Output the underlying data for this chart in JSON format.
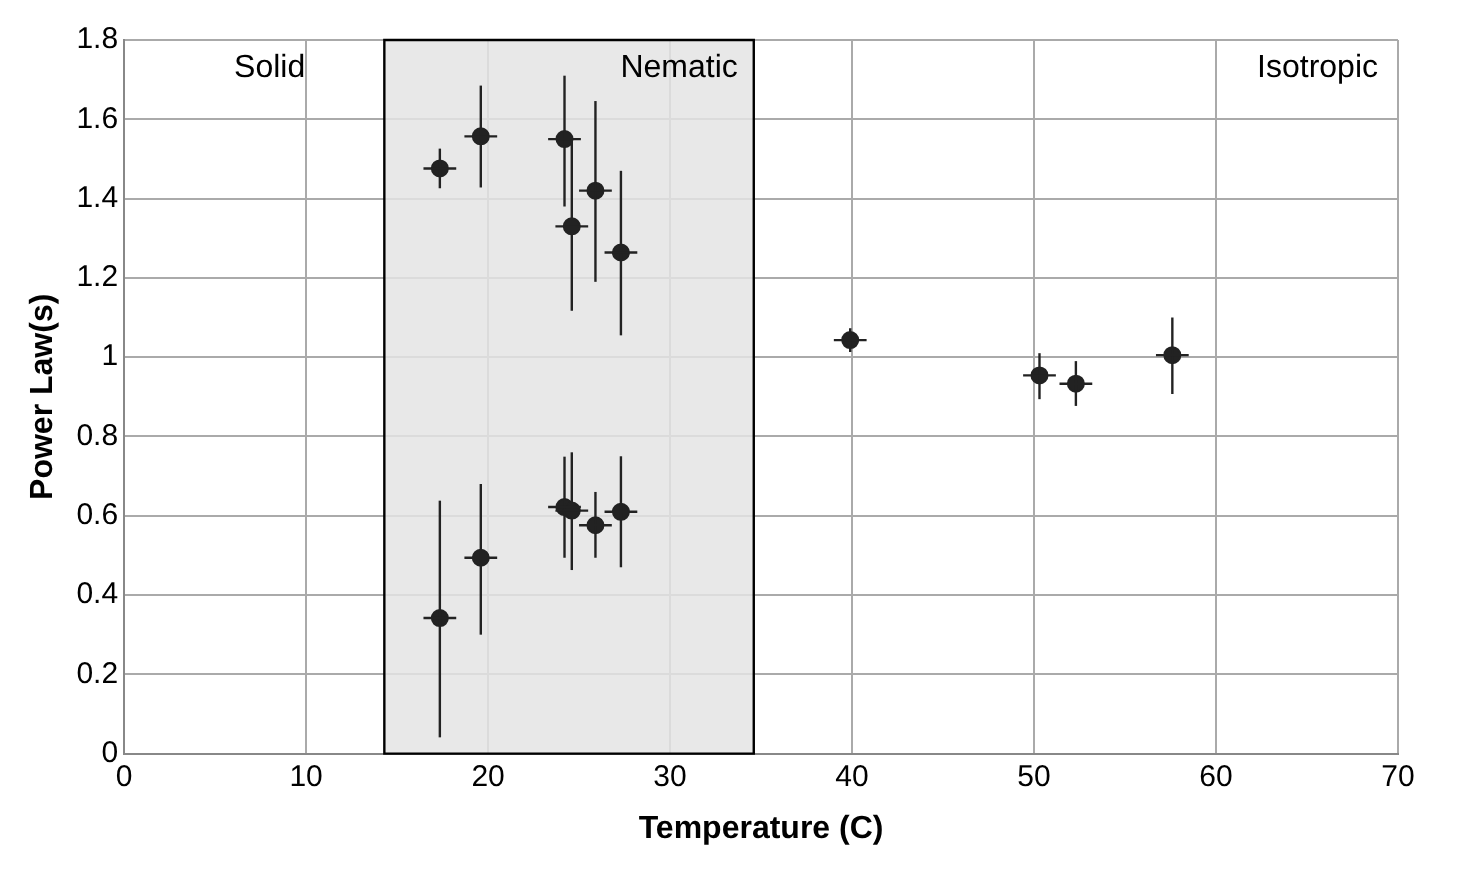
{
  "chart_data": {
    "type": "scatter",
    "xlabel": "Temperature (C)",
    "ylabel": "Power Law(s)",
    "x": [
      17.35,
      19.6,
      24.2,
      24.6,
      25.9,
      27.3,
      17.35,
      19.6,
      24.2,
      24.6,
      25.9,
      27.3,
      39.9,
      50.3,
      52.3,
      57.6
    ],
    "series": [
      {
        "color": "#222222",
        "values": [
          1.476,
          1.557,
          1.55,
          1.33,
          1.42,
          1.264,
          0.342,
          0.494,
          0.622,
          0.613,
          0.576,
          0.61,
          1.043,
          0.954,
          0.933,
          1.005
        ],
        "errors": [
          [
            1.426,
            1.526
          ],
          [
            1.428,
            1.685
          ],
          [
            1.38,
            1.71
          ],
          [
            1.117,
            1.55
          ],
          [
            1.19,
            1.646
          ],
          [
            1.055,
            1.47
          ],
          [
            0.041,
            0.638
          ],
          [
            0.3,
            0.68
          ],
          [
            0.494,
            0.749
          ],
          [
            0.463,
            0.76
          ],
          [
            0.494,
            0.66
          ],
          [
            0.47,
            0.75
          ],
          [
            1.013,
            1.073
          ],
          [
            0.894,
            1.01
          ],
          [
            0.877,
            0.99
          ],
          [
            0.907,
            1.1
          ]
        ],
        "xerrors": [
          0.9,
          0.9,
          0.9,
          0.9,
          0.9,
          0.9,
          0.9,
          0.9,
          0.9,
          0.9,
          0.9,
          0.9,
          0.9,
          0.9,
          0.9,
          0.9
        ]
      }
    ],
    "xlim": [
      0,
      70
    ],
    "xticks": [
      0,
      10,
      20,
      30,
      40,
      50,
      60,
      70
    ],
    "ylim": [
      0,
      1.8
    ],
    "yticks": [
      0,
      0.2,
      0.4,
      0.6,
      0.8,
      1,
      1.2,
      1.4,
      1.6,
      1.8
    ],
    "bands": [
      {
        "axis": "x",
        "from": 14.3,
        "to": 34.6,
        "label": "Nematic",
        "color": "#e4e4e4"
      }
    ],
    "annotations": [
      "Solid",
      "Isotropic"
    ],
    "grid": true,
    "legend": false,
    "marker": "circle"
  }
}
